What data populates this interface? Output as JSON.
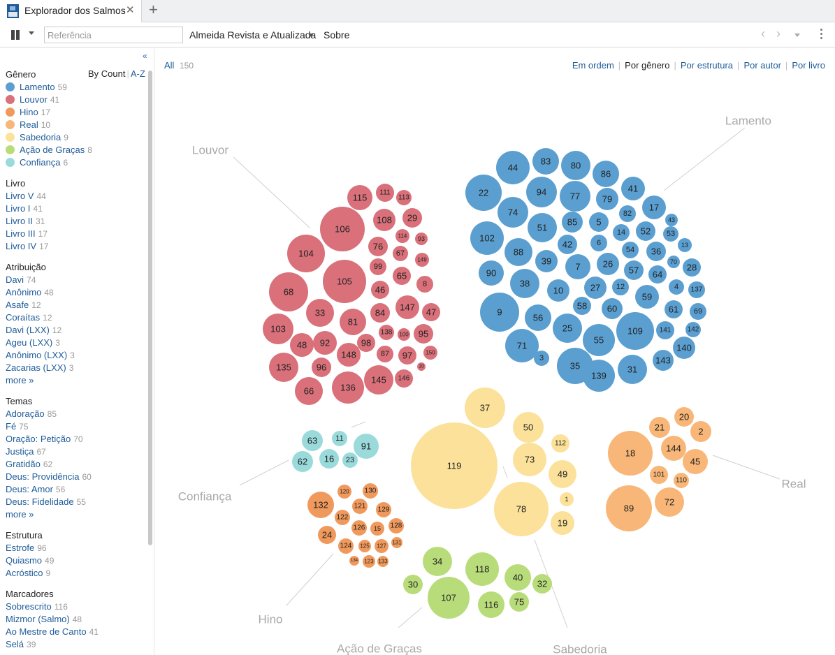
{
  "tab": {
    "title": "Explorador dos Salmos",
    "close": "✕",
    "new": "+"
  },
  "toolbar": {
    "reference_placeholder": "Referência",
    "version": "Almeida Revista e Atualizada",
    "about": "Sobre",
    "back": "‹",
    "forward": "›"
  },
  "sidebar": {
    "collapse": "«",
    "genre": {
      "title": "Gênero",
      "sort_count": "By Count",
      "sort_sep": "|",
      "sort_az": "A-Z",
      "items": [
        {
          "label": "Lamento",
          "count": "59",
          "color": "#5b9fd1"
        },
        {
          "label": "Louvor",
          "count": "41",
          "color": "#d9707a"
        },
        {
          "label": "Hino",
          "count": "17",
          "color": "#f0995c"
        },
        {
          "label": "Real",
          "count": "10",
          "color": "#f8b778"
        },
        {
          "label": "Sabedoria",
          "count": "9",
          "color": "#fbe19a"
        },
        {
          "label": "Ação de Graças",
          "count": "8",
          "color": "#b9dc7a"
        },
        {
          "label": "Confiança",
          "count": "6",
          "color": "#9adadb"
        }
      ]
    },
    "book": {
      "title": "Livro",
      "items": [
        {
          "label": "Livro V",
          "count": "44"
        },
        {
          "label": "Livro I",
          "count": "41"
        },
        {
          "label": "Livro II",
          "count": "31"
        },
        {
          "label": "Livro III",
          "count": "17"
        },
        {
          "label": "Livro IV",
          "count": "17"
        }
      ]
    },
    "attribution": {
      "title": "Atribuição",
      "items": [
        {
          "label": "Davi",
          "count": "74"
        },
        {
          "label": "Anônimo",
          "count": "48"
        },
        {
          "label": "Asafe",
          "count": "12"
        },
        {
          "label": "Coraítas",
          "count": "12"
        },
        {
          "label": "Davi (LXX)",
          "count": "12"
        },
        {
          "label": "Ageu (LXX)",
          "count": "3"
        },
        {
          "label": "Anônimo (LXX)",
          "count": "3"
        },
        {
          "label": "Zacarias (LXX)",
          "count": "3"
        }
      ],
      "more": "more »"
    },
    "themes": {
      "title": "Temas",
      "items": [
        {
          "label": "Adoração",
          "count": "85"
        },
        {
          "label": "Fé",
          "count": "75"
        },
        {
          "label": "Oração: Petição",
          "count": "70"
        },
        {
          "label": "Justiça",
          "count": "67"
        },
        {
          "label": "Gratidão",
          "count": "62"
        },
        {
          "label": "Deus: Providência",
          "count": "60"
        },
        {
          "label": "Deus: Amor",
          "count": "56"
        },
        {
          "label": "Deus: Fidelidade",
          "count": "55"
        }
      ],
      "more": "more »"
    },
    "structure": {
      "title": "Estrutura",
      "items": [
        {
          "label": "Estrofe",
          "count": "96"
        },
        {
          "label": "Quiasmo",
          "count": "49"
        },
        {
          "label": "Acróstico",
          "count": "9"
        }
      ]
    },
    "markers": {
      "title": "Marcadores",
      "items": [
        {
          "label": "Sobrescrito",
          "count": "116"
        },
        {
          "label": "Mizmor (Salmo)",
          "count": "48"
        },
        {
          "label": "Ao Mestre de Canto",
          "count": "41"
        },
        {
          "label": "Selá",
          "count": "39"
        }
      ]
    }
  },
  "main": {
    "all_label": "All",
    "all_count": "150",
    "views": [
      {
        "label": "Em ordem",
        "active": false
      },
      {
        "label": "Por gênero",
        "active": true
      },
      {
        "label": "Por estrutura",
        "active": false
      },
      {
        "label": "Por autor",
        "active": false
      },
      {
        "label": "Por livro",
        "active": false
      }
    ]
  },
  "bubble_groups": [
    {
      "name": "Lamento",
      "color": "#5b9fd1",
      "psalms": [
        "44",
        "83",
        "80",
        "86",
        "22",
        "94",
        "77",
        "41",
        "74",
        "79",
        "17",
        "82",
        "43",
        "51",
        "85",
        "5",
        "52",
        "14",
        "53",
        "102",
        "88",
        "42",
        "6",
        "54",
        "13",
        "36",
        "39",
        "7",
        "26",
        "70",
        "90",
        "57",
        "28",
        "64",
        "38",
        "10",
        "27",
        "12",
        "4",
        "137",
        "58",
        "59",
        "60",
        "61",
        "69",
        "9",
        "56",
        "25",
        "109",
        "141",
        "142",
        "55",
        "71",
        "140",
        "3",
        "35",
        "139",
        "31",
        "143"
      ]
    },
    {
      "name": "Louvor",
      "color": "#d9707a",
      "psalms": [
        "111",
        "115",
        "113",
        "106",
        "108",
        "29",
        "114",
        "93",
        "104",
        "76",
        "67",
        "149",
        "99",
        "65",
        "105",
        "8",
        "68",
        "46",
        "147",
        "33",
        "84",
        "47",
        "81",
        "103",
        "138",
        "100",
        "95",
        "48",
        "92",
        "98",
        "148",
        "87",
        "97",
        "150",
        "135",
        "96",
        "10",
        "136",
        "145",
        "146",
        "66"
      ]
    },
    {
      "name": "Hino",
      "color": "#f0995c",
      "psalms": [
        "130",
        "120",
        "132",
        "121",
        "129",
        "122",
        "126",
        "15",
        "128",
        "24",
        "124",
        "125",
        "127",
        "131",
        "134",
        "123",
        "133"
      ]
    },
    {
      "name": "Real",
      "color": "#f8b778",
      "psalms": [
        "20",
        "21",
        "2",
        "18",
        "144",
        "45",
        "101",
        "110",
        "89",
        "72"
      ]
    },
    {
      "name": "Sabedoria",
      "color": "#fbe19a",
      "psalms": [
        "37",
        "50",
        "112",
        "119",
        "73",
        "49",
        "1",
        "78",
        "19"
      ]
    },
    {
      "name": "Ação de Graças",
      "color": "#b9dc7a",
      "psalms": [
        "34",
        "118",
        "30",
        "40",
        "32",
        "107",
        "116",
        "75"
      ]
    },
    {
      "name": "Confiança",
      "color": "#9adadb",
      "psalms": [
        "63",
        "11",
        "91",
        "62",
        "16",
        "23"
      ]
    }
  ]
}
